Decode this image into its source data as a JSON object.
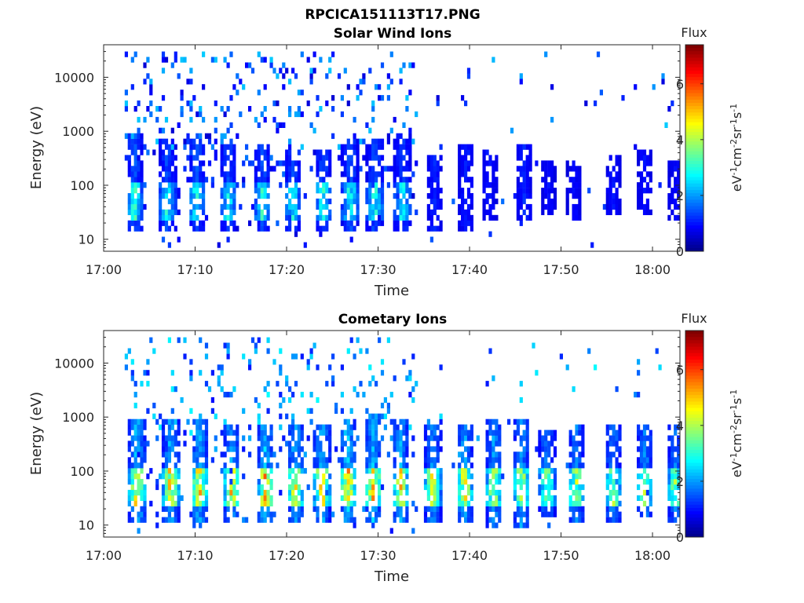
{
  "figure": {
    "file_title": "RPCICA151113T17.PNG"
  },
  "colormap": {
    "name": "jet"
  },
  "chart_data": [
    {
      "type": "heatmap",
      "title": "Solar Wind Ions",
      "xlabel": "Time",
      "ylabel": "Energy (eV)",
      "x_ticks": [
        "17:00",
        "17:10",
        "17:20",
        "17:30",
        "17:40",
        "17:50",
        "18:00"
      ],
      "x_tick_minutes": [
        0,
        10,
        20,
        30,
        40,
        50,
        60
      ],
      "xlim_minutes": [
        0,
        63
      ],
      "y_scale": "log",
      "y_ticks": [
        "10",
        "100",
        "1000",
        "10000"
      ],
      "y_tick_values": [
        10,
        100,
        1000,
        10000
      ],
      "ylim": [
        6,
        40000
      ],
      "grid": false,
      "colorbar": {
        "label_title": "Flux",
        "label": "eV-1cm-2sr-1s-1",
        "ticks": [
          "0",
          "2",
          "4",
          "6"
        ],
        "tick_values": [
          0,
          2,
          4,
          6
        ],
        "range": [
          0,
          7.4
        ]
      },
      "bursts": [
        {
          "t": 3.2,
          "lo": 15,
          "hi": 900,
          "peak": 3.2,
          "ion_band": 1
        },
        {
          "t": 6.8,
          "lo": 15,
          "hi": 700,
          "peak": 3.0,
          "ion_band": 1
        },
        {
          "t": 10.0,
          "lo": 15,
          "hi": 800,
          "peak": 3.1,
          "ion_band": 1
        },
        {
          "t": 13.5,
          "lo": 15,
          "hi": 600,
          "peak": 2.9,
          "ion_band": 1
        },
        {
          "t": 17.2,
          "lo": 15,
          "hi": 600,
          "peak": 3.0,
          "ion_band": 1
        },
        {
          "t": 20.5,
          "lo": 15,
          "hi": 500,
          "peak": 2.9,
          "ion_band": 1
        },
        {
          "t": 23.8,
          "lo": 15,
          "hi": 500,
          "peak": 3.0,
          "ion_band": 1
        },
        {
          "t": 26.8,
          "lo": 15,
          "hi": 700,
          "peak": 3.1,
          "ion_band": 1
        },
        {
          "t": 29.5,
          "lo": 15,
          "hi": 800,
          "peak": 3.0,
          "ion_band": 1
        },
        {
          "t": 32.5,
          "lo": 15,
          "hi": 900,
          "peak": 2.8,
          "ion_band": 1
        },
        {
          "t": 36.0,
          "lo": 15,
          "hi": 400,
          "peak": 2.2,
          "ion_band": 0
        },
        {
          "t": 39.5,
          "lo": 15,
          "hi": 600,
          "peak": 2.0,
          "ion_band": 0
        },
        {
          "t": 42.0,
          "lo": 20,
          "hi": 500,
          "peak": 1.8,
          "ion_band": 0
        },
        {
          "t": 45.8,
          "lo": 20,
          "hi": 600,
          "peak": 2.1,
          "ion_band": 0
        },
        {
          "t": 48.5,
          "lo": 30,
          "hi": 300,
          "peak": 1.5,
          "ion_band": 0
        },
        {
          "t": 51.3,
          "lo": 20,
          "hi": 300,
          "peak": 1.5,
          "ion_band": 0
        },
        {
          "t": 55.5,
          "lo": 30,
          "hi": 400,
          "peak": 1.7,
          "ion_band": 0
        },
        {
          "t": 59.0,
          "lo": 30,
          "hi": 500,
          "peak": 1.6,
          "ion_band": 0
        },
        {
          "t": 62.3,
          "lo": 20,
          "hi": 300,
          "peak": 1.5,
          "ion_band": 0
        }
      ],
      "background_until_minute": 34,
      "notes_visible_only": true
    },
    {
      "type": "heatmap",
      "title": "Cometary Ions",
      "xlabel": "Time",
      "ylabel": "Energy (eV)",
      "x_ticks": [
        "17:00",
        "17:10",
        "17:20",
        "17:30",
        "17:40",
        "17:50",
        "18:00"
      ],
      "x_tick_minutes": [
        0,
        10,
        20,
        30,
        40,
        50,
        60
      ],
      "xlim_minutes": [
        0,
        63
      ],
      "y_scale": "log",
      "y_ticks": [
        "10",
        "100",
        "1000",
        "10000"
      ],
      "y_tick_values": [
        10,
        100,
        1000,
        10000
      ],
      "ylim": [
        6,
        40000
      ],
      "grid": false,
      "colorbar": {
        "label_title": "Flux",
        "label": "eV-1cm-2sr-1s-1",
        "ticks": [
          "0",
          "2",
          "4",
          "6"
        ],
        "tick_values": [
          0,
          2,
          4,
          6
        ],
        "range": [
          0,
          7.4
        ]
      },
      "bursts": [
        {
          "t": 3.5,
          "lo": 12,
          "hi": 1000,
          "peak": 5.6,
          "ion_band": 1
        },
        {
          "t": 7.2,
          "lo": 12,
          "hi": 1000,
          "peak": 5.5,
          "ion_band": 1
        },
        {
          "t": 10.3,
          "lo": 12,
          "hi": 1000,
          "peak": 5.4,
          "ion_band": 1
        },
        {
          "t": 13.8,
          "lo": 12,
          "hi": 800,
          "peak": 5.2,
          "ion_band": 1
        },
        {
          "t": 17.5,
          "lo": 12,
          "hi": 700,
          "peak": 5.6,
          "ion_band": 1
        },
        {
          "t": 20.8,
          "lo": 12,
          "hi": 700,
          "peak": 5.3,
          "ion_band": 1
        },
        {
          "t": 23.7,
          "lo": 12,
          "hi": 700,
          "peak": 5.4,
          "ion_band": 1
        },
        {
          "t": 26.5,
          "lo": 12,
          "hi": 1000,
          "peak": 5.8,
          "ion_band": 1
        },
        {
          "t": 29.3,
          "lo": 12,
          "hi": 1200,
          "peak": 5.6,
          "ion_band": 1
        },
        {
          "t": 32.3,
          "lo": 12,
          "hi": 1000,
          "peak": 5.0,
          "ion_band": 1
        },
        {
          "t": 35.8,
          "lo": 12,
          "hi": 800,
          "peak": 4.8,
          "ion_band": 1
        },
        {
          "t": 39.3,
          "lo": 12,
          "hi": 800,
          "peak": 5.0,
          "ion_band": 1
        },
        {
          "t": 42.5,
          "lo": 8,
          "hi": 900,
          "peak": 4.7,
          "ion_band": 1
        },
        {
          "t": 45.5,
          "lo": 8,
          "hi": 1000,
          "peak": 4.6,
          "ion_band": 1
        },
        {
          "t": 48.3,
          "lo": 15,
          "hi": 600,
          "peak": 4.0,
          "ion_band": 1
        },
        {
          "t": 51.5,
          "lo": 12,
          "hi": 700,
          "peak": 4.2,
          "ion_band": 1
        },
        {
          "t": 55.5,
          "lo": 12,
          "hi": 800,
          "peak": 4.3,
          "ion_band": 1
        },
        {
          "t": 59.0,
          "lo": 15,
          "hi": 700,
          "peak": 4.2,
          "ion_band": 1
        },
        {
          "t": 62.3,
          "lo": 12,
          "hi": 800,
          "peak": 4.0,
          "ion_band": 1
        }
      ],
      "background_until_minute": 34
    }
  ]
}
